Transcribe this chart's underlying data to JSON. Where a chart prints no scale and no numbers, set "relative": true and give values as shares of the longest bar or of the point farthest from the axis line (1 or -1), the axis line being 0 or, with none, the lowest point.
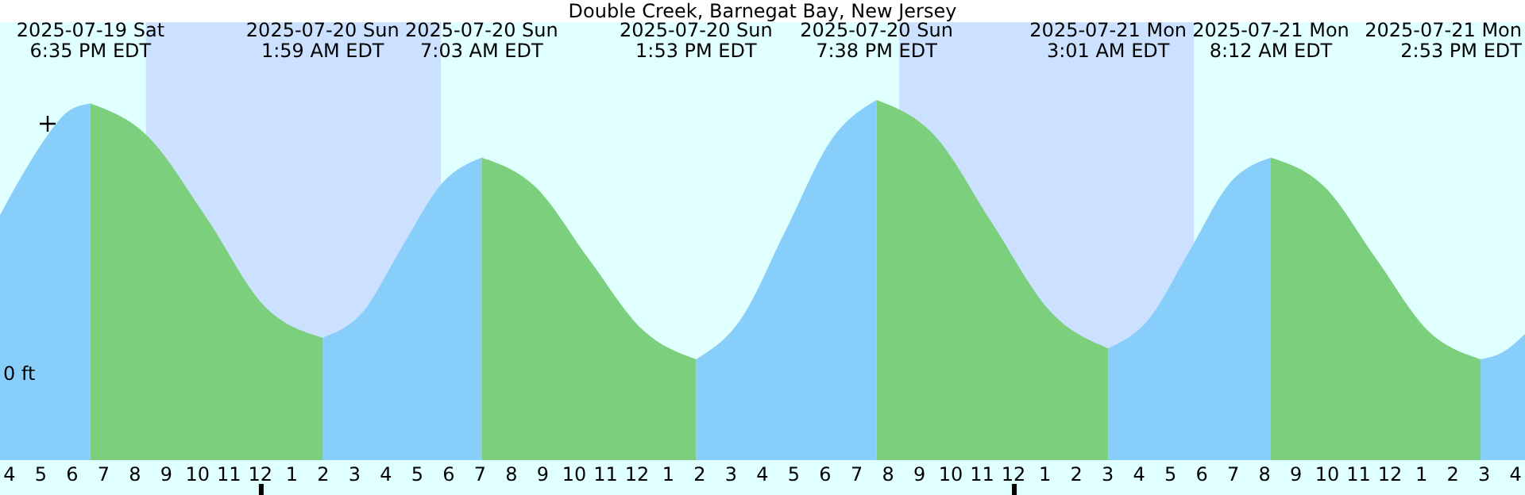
{
  "chart_data": {
    "type": "area",
    "title": "Double Creek, Barnegat Bay, New Jersey",
    "relative": true,
    "xlim": [
      "2025-07-19T15:42",
      "2025-07-21T16:18"
    ],
    "xticks": [
      {
        "value": "2025-07-19T16:00",
        "label": "4"
      },
      {
        "value": "2025-07-19T17:00",
        "label": "5"
      },
      {
        "value": "2025-07-19T18:00",
        "label": "6"
      },
      {
        "value": "2025-07-19T19:00",
        "label": "7"
      },
      {
        "value": "2025-07-19T20:00",
        "label": "8"
      },
      {
        "value": "2025-07-19T21:00",
        "label": "9"
      },
      {
        "value": "2025-07-19T22:00",
        "label": "10"
      },
      {
        "value": "2025-07-19T23:00",
        "label": "11"
      },
      {
        "value": "2025-07-20T00:00",
        "label": "12"
      },
      {
        "value": "2025-07-20T01:00",
        "label": "1"
      },
      {
        "value": "2025-07-20T02:00",
        "label": "2"
      },
      {
        "value": "2025-07-20T03:00",
        "label": "3"
      },
      {
        "value": "2025-07-20T04:00",
        "label": "4"
      },
      {
        "value": "2025-07-20T05:00",
        "label": "5"
      },
      {
        "value": "2025-07-20T06:00",
        "label": "6"
      },
      {
        "value": "2025-07-20T07:00",
        "label": "7"
      },
      {
        "value": "2025-07-20T08:00",
        "label": "8"
      },
      {
        "value": "2025-07-20T09:00",
        "label": "9"
      },
      {
        "value": "2025-07-20T10:00",
        "label": "10"
      },
      {
        "value": "2025-07-20T11:00",
        "label": "11"
      },
      {
        "value": "2025-07-20T12:00",
        "label": "12"
      },
      {
        "value": "2025-07-20T13:00",
        "label": "1"
      },
      {
        "value": "2025-07-20T14:00",
        "label": "2"
      },
      {
        "value": "2025-07-20T15:00",
        "label": "3"
      },
      {
        "value": "2025-07-20T16:00",
        "label": "4"
      },
      {
        "value": "2025-07-20T17:00",
        "label": "5"
      },
      {
        "value": "2025-07-20T18:00",
        "label": "6"
      },
      {
        "value": "2025-07-20T19:00",
        "label": "7"
      },
      {
        "value": "2025-07-20T20:00",
        "label": "8"
      },
      {
        "value": "2025-07-20T21:00",
        "label": "9"
      },
      {
        "value": "2025-07-20T22:00",
        "label": "10"
      },
      {
        "value": "2025-07-20T23:00",
        "label": "11"
      },
      {
        "value": "2025-07-21T00:00",
        "label": "12"
      },
      {
        "value": "2025-07-21T01:00",
        "label": "1"
      },
      {
        "value": "2025-07-21T02:00",
        "label": "2"
      },
      {
        "value": "2025-07-21T03:00",
        "label": "3"
      },
      {
        "value": "2025-07-21T04:00",
        "label": "4"
      },
      {
        "value": "2025-07-21T05:00",
        "label": "5"
      },
      {
        "value": "2025-07-21T06:00",
        "label": "6"
      },
      {
        "value": "2025-07-21T07:00",
        "label": "7"
      },
      {
        "value": "2025-07-21T08:00",
        "label": "8"
      },
      {
        "value": "2025-07-21T09:00",
        "label": "9"
      },
      {
        "value": "2025-07-21T10:00",
        "label": "10"
      },
      {
        "value": "2025-07-21T11:00",
        "label": "11"
      },
      {
        "value": "2025-07-21T12:00",
        "label": "12"
      },
      {
        "value": "2025-07-21T13:00",
        "label": "1"
      },
      {
        "value": "2025-07-21T14:00",
        "label": "2"
      },
      {
        "value": "2025-07-21T15:00",
        "label": "3"
      },
      {
        "value": "2025-07-21T16:00",
        "label": "4"
      }
    ],
    "bands": [
      {
        "axis": "x",
        "from": "2025-07-19T20:21",
        "to": "2025-07-20T05:45",
        "color": "#cce0ff"
      },
      {
        "axis": "x",
        "from": "2025-07-20T20:21",
        "to": "2025-07-21T05:45",
        "color": "#cce0ff"
      }
    ],
    "series": [
      {
        "color": "#87cefa",
        "x": [
          "2025-07-19T15:42",
          "2025-07-19T16:24",
          "2025-07-19T17:12",
          "2025-07-19T17:54",
          "2025-07-19T18:35",
          null,
          "2025-07-20T01:59",
          "2025-07-20T03:15",
          "2025-07-20T04:30",
          "2025-07-20T05:48",
          "2025-07-20T07:03",
          null,
          "2025-07-20T13:53",
          "2025-07-20T15:18",
          "2025-07-20T16:45",
          "2025-07-20T18:12",
          "2025-07-20T19:38",
          null,
          "2025-07-21T03:01",
          "2025-07-21T04:18",
          "2025-07-21T05:36",
          "2025-07-21T06:54",
          "2025-07-21T08:12",
          null,
          "2025-07-21T14:53",
          "2025-07-21T15:36",
          "2025-07-21T16:18"
        ],
        "values": [
          0.68,
          0.79,
          0.9,
          0.97,
          0.99,
          null,
          0.34,
          0.41,
          0.59,
          0.77,
          0.84,
          null,
          0.28,
          0.39,
          0.64,
          0.89,
          1.0,
          null,
          0.31,
          0.39,
          0.58,
          0.77,
          0.84,
          null,
          0.28,
          0.3,
          0.35
        ]
      },
      {
        "color": "#7ccf7c",
        "x": [
          "2025-07-19T18:35",
          "2025-07-19T20:24",
          "2025-07-19T22:18",
          "2025-07-20T00:06",
          "2025-07-20T01:59",
          null,
          "2025-07-20T07:03",
          "2025-07-20T08:45",
          "2025-07-20T10:27",
          "2025-07-20T12:12",
          "2025-07-20T13:53",
          null,
          "2025-07-20T19:38",
          "2025-07-20T21:30",
          "2025-07-20T23:18",
          "2025-07-21T01:12",
          "2025-07-21T03:01",
          null,
          "2025-07-21T08:12",
          "2025-07-21T09:54",
          "2025-07-21T11:33",
          "2025-07-21T13:12",
          "2025-07-21T14:53"
        ],
        "values": [
          0.99,
          0.9,
          0.67,
          0.43,
          0.34,
          null,
          0.84,
          0.76,
          0.56,
          0.36,
          0.28,
          null,
          1.0,
          0.9,
          0.66,
          0.41,
          0.31,
          null,
          0.84,
          0.76,
          0.56,
          0.36,
          0.28
        ]
      }
    ],
    "annotations": [
      "2025-07-19 Sat\n6:35 PM EDT",
      "2025-07-20 Sun\n1:59 AM EDT",
      "2025-07-20 Sun\n7:03 AM EDT",
      "2025-07-20 Sun\n1:53 PM EDT",
      "2025-07-20 Sun\n7:38 PM EDT",
      "2025-07-21 Mon\n3:01 AM EDT",
      "2025-07-21 Mon\n8:12 AM EDT",
      "2025-07-21 Mon\n2:53 PM EDT",
      "0 ft"
    ]
  }
}
